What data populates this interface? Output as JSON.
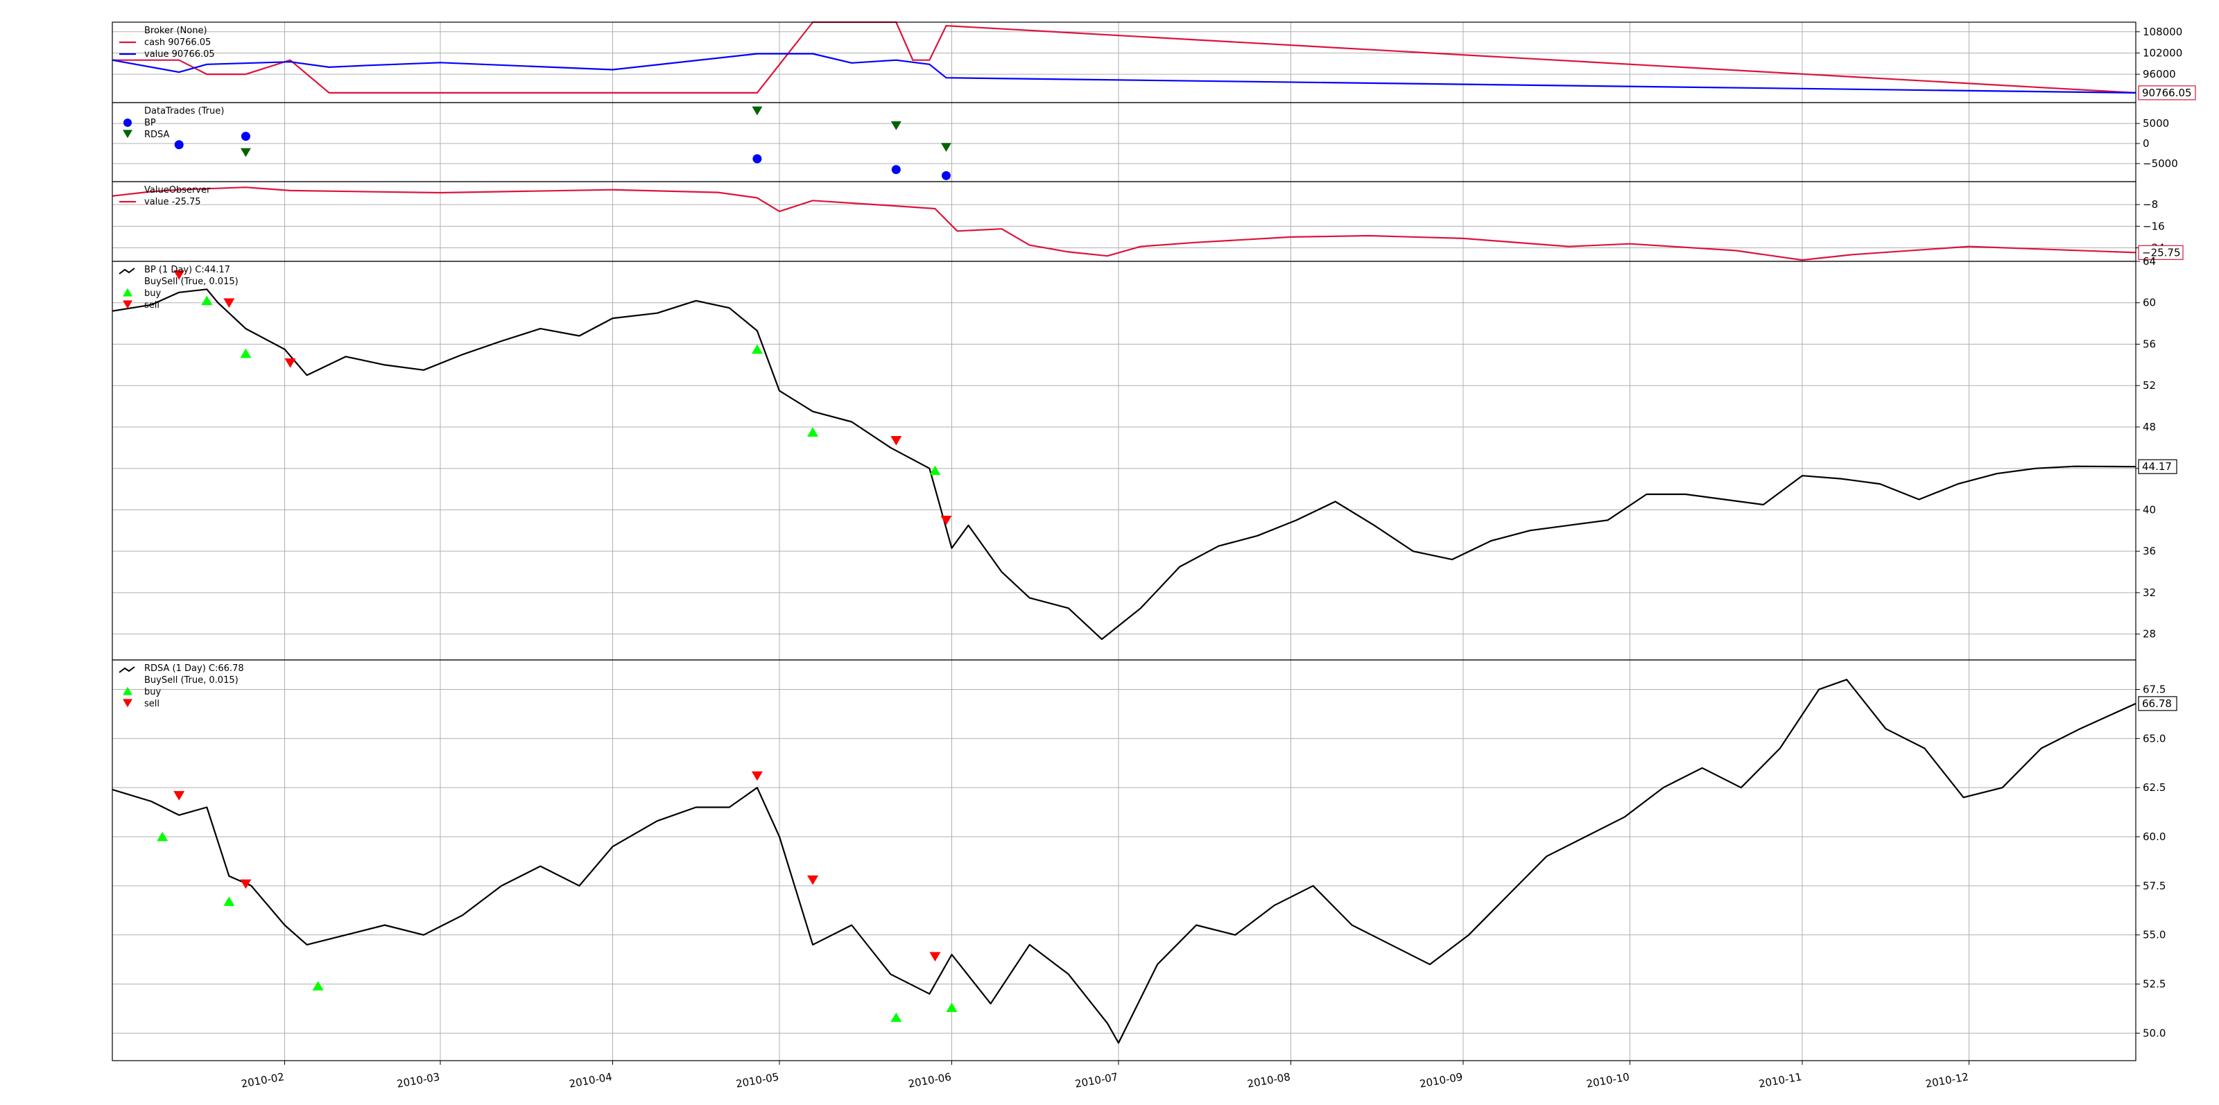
{
  "chart_data": [
    {
      "type": "line",
      "panel": "broker",
      "legend": [
        "Broker (None)",
        "cash 90766.05",
        "value 90766.05"
      ],
      "series": [
        {
          "name": "cash",
          "color": "#dc143c",
          "x": [
            "2010-01-01",
            "2010-01-13",
            "2010-01-18",
            "2010-01-25",
            "2010-02-02",
            "2010-02-09",
            "2010-04-27",
            "2010-05-07",
            "2010-05-22",
            "2010-05-25",
            "2010-05-28",
            "2010-05-31",
            "2010-12-31"
          ],
          "y": [
            100000,
            100000,
            96000,
            96000,
            100000,
            90766,
            90766,
            110700,
            110700,
            100000,
            100000,
            109700,
            90766
          ]
        },
        {
          "name": "value",
          "color": "#0000ff",
          "x": [
            "2010-01-01",
            "2010-01-13",
            "2010-01-18",
            "2010-02-02",
            "2010-02-09",
            "2010-02-16",
            "2010-03-01",
            "2010-04-01",
            "2010-04-27",
            "2010-05-07",
            "2010-05-14",
            "2010-05-22",
            "2010-05-28",
            "2010-05-31",
            "2010-12-31"
          ],
          "y": [
            100000,
            96600,
            98800,
            99500,
            98000,
            98500,
            99300,
            97300,
            101800,
            101800,
            99200,
            100000,
            98800,
            95000,
            90766
          ]
        }
      ],
      "yticks": [
        96000,
        102000,
        108000
      ],
      "ylim": [
        88000,
        110700
      ],
      "last_value_label": "90766.05"
    },
    {
      "type": "scatter",
      "panel": "datatrades",
      "legend": [
        "DataTrades (True)",
        "BP",
        "RDSA"
      ],
      "series": [
        {
          "name": "BP",
          "color": "#0000ff",
          "marker": "circle",
          "x": [
            "2010-01-13",
            "2010-01-25",
            "2010-04-27",
            "2010-05-22",
            "2010-05-31"
          ],
          "y": [
            -300,
            1800,
            -3800,
            -6500,
            -8000
          ]
        },
        {
          "name": "RDSA",
          "color": "#006400",
          "marker": "triangle-down",
          "x": [
            "2010-01-25",
            "2010-04-27",
            "2010-05-22",
            "2010-05-31"
          ],
          "y": [
            -2200,
            8200,
            4500,
            -900
          ]
        }
      ],
      "yticks": [
        -5000,
        0,
        5000
      ],
      "ylim": [
        -9500,
        10200
      ]
    },
    {
      "type": "line",
      "panel": "valueobserver",
      "legend": [
        "ValueObserver",
        "value -25.75"
      ],
      "series": [
        {
          "name": "value",
          "color": "#dc143c",
          "x": [
            "2010-01-01",
            "2010-01-08",
            "2010-01-13",
            "2010-01-25",
            "2010-02-02",
            "2010-03-01",
            "2010-04-01",
            "2010-04-20",
            "2010-04-27",
            "2010-05-01",
            "2010-05-07",
            "2010-05-22",
            "2010-05-29",
            "2010-06-02",
            "2010-06-10",
            "2010-06-15",
            "2010-06-22",
            "2010-06-29",
            "2010-07-05",
            "2010-07-15",
            "2010-08-01",
            "2010-08-15",
            "2010-09-01",
            "2010-09-20",
            "2010-10-01",
            "2010-10-20",
            "2010-11-01",
            "2010-11-10",
            "2010-12-01",
            "2010-12-31"
          ],
          "y": [
            -4.8,
            -3.2,
            -2.5,
            -1.6,
            -2.8,
            -3.6,
            -2.5,
            -3.5,
            -5.5,
            -10.5,
            -6.5,
            -8.5,
            -9.5,
            -17.8,
            -17.0,
            -23.0,
            -25.5,
            -27.0,
            -23.5,
            -22.0,
            -20.0,
            -19.5,
            -20.5,
            -23.5,
            -22.5,
            -25.0,
            -28.5,
            -26.5,
            -23.5,
            -25.75
          ]
        }
      ],
      "yticks": [
        -8,
        -16,
        -24
      ],
      "ylim": [
        -29,
        0.5
      ],
      "last_value_label": "-25.75"
    },
    {
      "type": "line",
      "panel": "bp",
      "legend": [
        "BP (1 Day) C:44.17",
        "BuySell (True, 0.015)",
        "buy",
        "sell"
      ],
      "series": [
        {
          "name": "close",
          "color": "#000000",
          "x": [
            "2010-01-01",
            "2010-01-08",
            "2010-01-13",
            "2010-01-18",
            "2010-01-20",
            "2010-01-25",
            "2010-02-01",
            "2010-02-05",
            "2010-02-12",
            "2010-02-19",
            "2010-02-26",
            "2010-03-05",
            "2010-03-12",
            "2010-03-19",
            "2010-03-26",
            "2010-04-01",
            "2010-04-09",
            "2010-04-16",
            "2010-04-22",
            "2010-04-27",
            "2010-05-01",
            "2010-05-07",
            "2010-05-14",
            "2010-05-21",
            "2010-05-28",
            "2010-06-01",
            "2010-06-04",
            "2010-06-10",
            "2010-06-15",
            "2010-06-22",
            "2010-06-28",
            "2010-07-05",
            "2010-07-12",
            "2010-07-19",
            "2010-07-26",
            "2010-08-02",
            "2010-08-09",
            "2010-08-16",
            "2010-08-23",
            "2010-08-30",
            "2010-09-06",
            "2010-09-13",
            "2010-09-20",
            "2010-09-27",
            "2010-10-04",
            "2010-10-11",
            "2010-10-18",
            "2010-10-25",
            "2010-11-01",
            "2010-11-08",
            "2010-11-15",
            "2010-11-22",
            "2010-11-29",
            "2010-12-06",
            "2010-12-13",
            "2010-12-20",
            "2010-12-31"
          ],
          "y": [
            59.2,
            59.8,
            61.0,
            61.3,
            60.0,
            57.5,
            55.5,
            53.0,
            54.8,
            54.0,
            53.5,
            55.0,
            56.3,
            57.5,
            56.8,
            58.5,
            59.0,
            60.2,
            59.5,
            57.3,
            51.5,
            49.5,
            48.5,
            46.0,
            44.0,
            36.3,
            38.5,
            34.0,
            31.5,
            30.5,
            27.5,
            30.5,
            34.5,
            36.5,
            37.5,
            39.0,
            40.8,
            38.5,
            36.0,
            35.2,
            37.0,
            38.0,
            38.5,
            39.0,
            41.5,
            41.5,
            41.0,
            40.5,
            43.3,
            43.0,
            42.5,
            41.0,
            42.5,
            43.5,
            44.0,
            44.2,
            44.17
          ]
        }
      ],
      "buy_markers": {
        "x": [
          "2010-01-18",
          "2010-01-25",
          "2010-04-27",
          "2010-05-07",
          "2010-05-29"
        ],
        "y": [
          60.2,
          55.1,
          55.5,
          47.5,
          43.8
        ]
      },
      "sell_markers": {
        "x": [
          "2010-01-13",
          "2010-01-22",
          "2010-02-02",
          "2010-05-22",
          "2010-05-31"
        ],
        "y": [
          62.7,
          60.0,
          54.2,
          46.7,
          39.0
        ]
      },
      "yticks": [
        28,
        32,
        36,
        40,
        44,
        48,
        52,
        56,
        60,
        64
      ],
      "ylim": [
        25.5,
        64
      ],
      "last_value_label": "44.17"
    },
    {
      "type": "line",
      "panel": "rdsa",
      "legend": [
        "RDSA (1 Day) C:66.78",
        "BuySell (True, 0.015)",
        "buy",
        "sell"
      ],
      "series": [
        {
          "name": "close",
          "color": "#000000",
          "x": [
            "2010-01-01",
            "2010-01-08",
            "2010-01-13",
            "2010-01-18",
            "2010-01-22",
            "2010-01-26",
            "2010-02-01",
            "2010-02-05",
            "2010-02-12",
            "2010-02-19",
            "2010-02-26",
            "2010-03-05",
            "2010-03-12",
            "2010-03-19",
            "2010-03-26",
            "2010-04-01",
            "2010-04-09",
            "2010-04-16",
            "2010-04-22",
            "2010-04-27",
            "2010-05-01",
            "2010-05-07",
            "2010-05-14",
            "2010-05-21",
            "2010-05-28",
            "2010-06-01",
            "2010-06-08",
            "2010-06-15",
            "2010-06-22",
            "2010-06-29",
            "2010-07-01",
            "2010-07-08",
            "2010-07-15",
            "2010-07-22",
            "2010-07-29",
            "2010-08-05",
            "2010-08-12",
            "2010-08-19",
            "2010-08-26",
            "2010-09-02",
            "2010-09-09",
            "2010-09-16",
            "2010-09-23",
            "2010-09-30",
            "2010-10-07",
            "2010-10-14",
            "2010-10-21",
            "2010-10-28",
            "2010-11-04",
            "2010-11-09",
            "2010-11-16",
            "2010-11-23",
            "2010-11-30",
            "2010-12-07",
            "2010-12-14",
            "2010-12-21",
            "2010-12-31"
          ],
          "y": [
            62.4,
            61.8,
            61.1,
            61.5,
            58.0,
            57.5,
            55.5,
            54.5,
            55.0,
            55.5,
            55.0,
            56.0,
            57.5,
            58.5,
            57.5,
            59.5,
            60.8,
            61.5,
            61.5,
            62.5,
            60.0,
            54.5,
            55.5,
            53.0,
            52.0,
            54.0,
            51.5,
            54.5,
            53.0,
            50.5,
            49.5,
            53.5,
            55.5,
            55.0,
            56.5,
            57.5,
            55.5,
            54.5,
            53.5,
            55.0,
            57.0,
            59.0,
            60.0,
            61.0,
            62.5,
            63.5,
            62.5,
            64.5,
            67.5,
            68.0,
            65.5,
            64.5,
            62.0,
            62.5,
            64.5,
            65.5,
            66.78
          ]
        }
      ],
      "buy_markers": {
        "x": [
          "2010-01-10",
          "2010-01-22",
          "2010-02-07",
          "2010-05-22",
          "2010-06-01"
        ],
        "y": [
          60.0,
          56.7,
          52.4,
          50.8,
          51.3
        ]
      },
      "sell_markers": {
        "x": [
          "2010-01-13",
          "2010-01-25",
          "2010-04-27",
          "2010-05-07",
          "2010-05-29"
        ],
        "y": [
          62.1,
          57.6,
          63.1,
          57.8,
          53.9
        ]
      },
      "yticks": [
        50.0,
        52.5,
        55.0,
        57.5,
        60.0,
        62.5,
        65.0,
        67.5
      ],
      "ylim": [
        48.6,
        69.0
      ],
      "last_value_label": "66.78"
    }
  ],
  "xaxis": {
    "xlim": [
      "2010-01-01",
      "2010-12-31"
    ],
    "ticks": [
      "2010-02-01",
      "2010-03-01",
      "2010-04-01",
      "2010-05-01",
      "2010-06-01",
      "2010-07-01",
      "2010-08-01",
      "2010-09-01",
      "2010-10-01",
      "2010-11-01",
      "2010-12-01"
    ],
    "tick_labels": [
      "2010-02",
      "2010-03",
      "2010-04",
      "2010-05",
      "2010-06",
      "2010-07",
      "2010-08",
      "2010-09",
      "2010-10",
      "2010-11",
      "2010-12"
    ]
  },
  "colors": {
    "buy": "#00ff00",
    "sell": "#ff0000",
    "grid": "#b0b0b0"
  }
}
